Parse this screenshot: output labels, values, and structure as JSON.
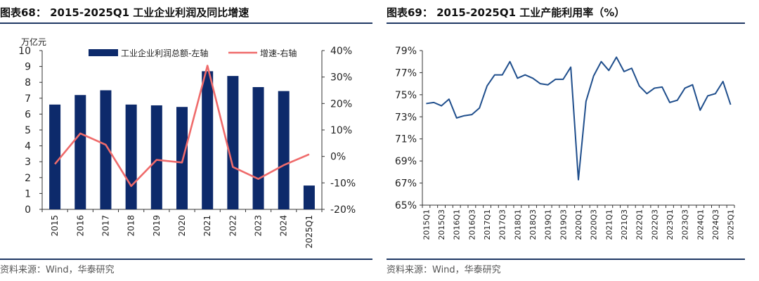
{
  "left": {
    "title": "图表68： 2015-2025Q1 工业企业利润及同比增速",
    "source": "资料来源：Wind，华泰研究",
    "chart_data": {
      "type": "bar",
      "categories": [
        "2015",
        "2016",
        "2017",
        "2018",
        "2019",
        "2020",
        "2021",
        "2022",
        "2023",
        "2024",
        "2025Q1"
      ],
      "series": [
        {
          "name": "工业企业利润总额-左轴",
          "kind": "bar",
          "axis": "left",
          "color": "#0d2a6b",
          "values": [
            6.6,
            7.2,
            7.5,
            6.6,
            6.55,
            6.45,
            8.7,
            8.4,
            7.7,
            7.45,
            1.5
          ]
        },
        {
          "name": "增速-右轴",
          "kind": "line",
          "axis": "right",
          "color": "#ef6b6b",
          "values": [
            -2.9,
            8.7,
            4.4,
            -11.2,
            -1.3,
            -2.3,
            34.3,
            -4.0,
            -8.5,
            -3.3,
            0.8
          ]
        }
      ],
      "ylabel_left": "万亿元",
      "ylim_left": [
        0,
        10
      ],
      "yticks_left": [
        "0",
        "1",
        "2",
        "3",
        "4",
        "5",
        "6",
        "7",
        "8",
        "9",
        "10"
      ],
      "ylim_right": [
        -20,
        40
      ],
      "yticks_right": [
        "-20%",
        "-10%",
        "0%",
        "10%",
        "20%",
        "30%",
        "40%"
      ],
      "legend": "top",
      "grid": false
    }
  },
  "right": {
    "title": "图表69： 2015-2025Q1 工业产能利用率（%）",
    "source": "资料来源：Wind，华泰研究",
    "chart_data": {
      "type": "line",
      "x": [
        "2015Q1",
        "2015Q2",
        "2015Q3",
        "2015Q4",
        "2016Q1",
        "2016Q2",
        "2016Q3",
        "2016Q4",
        "2017Q1",
        "2017Q2",
        "2017Q3",
        "2017Q4",
        "2018Q1",
        "2018Q2",
        "2018Q3",
        "2018Q4",
        "2019Q1",
        "2019Q2",
        "2019Q3",
        "2019Q4",
        "2020Q1",
        "2020Q2",
        "2020Q3",
        "2020Q4",
        "2021Q1",
        "2021Q2",
        "2021Q3",
        "2021Q4",
        "2022Q1",
        "2022Q2",
        "2022Q3",
        "2022Q4",
        "2023Q1",
        "2023Q2",
        "2023Q3",
        "2023Q4",
        "2024Q1",
        "2024Q2",
        "2024Q3",
        "2024Q4",
        "2025Q1"
      ],
      "xticks": [
        "2015Q1",
        "2015Q3",
        "2016Q1",
        "2016Q3",
        "2017Q1",
        "2017Q3",
        "2018Q1",
        "2018Q3",
        "2019Q1",
        "2019Q3",
        "2020Q1",
        "2020Q3",
        "2021Q1",
        "2021Q3",
        "2022Q1",
        "2022Q3",
        "2023Q1",
        "2023Q3",
        "2024Q1",
        "2024Q3",
        "2025Q1"
      ],
      "series": [
        {
          "color": "#1f4e8c",
          "values": [
            74.2,
            74.3,
            74.0,
            74.6,
            72.9,
            73.1,
            73.2,
            73.8,
            75.8,
            76.8,
            76.8,
            78.0,
            76.5,
            76.8,
            76.5,
            76.0,
            75.9,
            76.4,
            76.4,
            77.5,
            67.3,
            74.4,
            76.7,
            78.0,
            77.2,
            78.4,
            77.1,
            77.4,
            75.8,
            75.1,
            75.6,
            75.7,
            74.3,
            74.5,
            75.6,
            75.9,
            73.6,
            74.9,
            75.1,
            76.2,
            74.1
          ]
        }
      ],
      "ylim": [
        65,
        79
      ],
      "yticks": [
        "65%",
        "67%",
        "69%",
        "71%",
        "73%",
        "75%",
        "77%",
        "79%"
      ],
      "grid": false
    }
  }
}
